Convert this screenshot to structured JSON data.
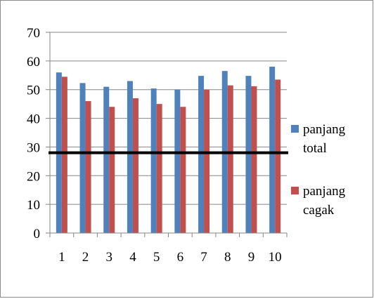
{
  "chart_data": {
    "type": "bar",
    "title": "",
    "xlabel": "",
    "ylabel": "",
    "categories": [
      "1",
      "2",
      "3",
      "4",
      "5",
      "6",
      "7",
      "8",
      "9",
      "10"
    ],
    "series": [
      {
        "name": "panjang total",
        "color": "#4F81BD",
        "values": [
          56,
          52.3,
          51,
          53,
          50.4,
          50,
          54.8,
          56.5,
          54.8,
          58
        ]
      },
      {
        "name": "panjang cagak",
        "color": "#C0504D",
        "values": [
          54.5,
          46,
          44,
          47,
          45,
          44,
          50,
          51.5,
          51.2,
          53.5
        ]
      }
    ],
    "ylim": [
      0,
      70
    ],
    "yticks": [
      "0",
      "10",
      "20",
      "30",
      "40",
      "50",
      "60",
      "70"
    ],
    "grid": true,
    "legend_position": "right",
    "reference_line": {
      "value": 28,
      "color": "#000000"
    }
  }
}
